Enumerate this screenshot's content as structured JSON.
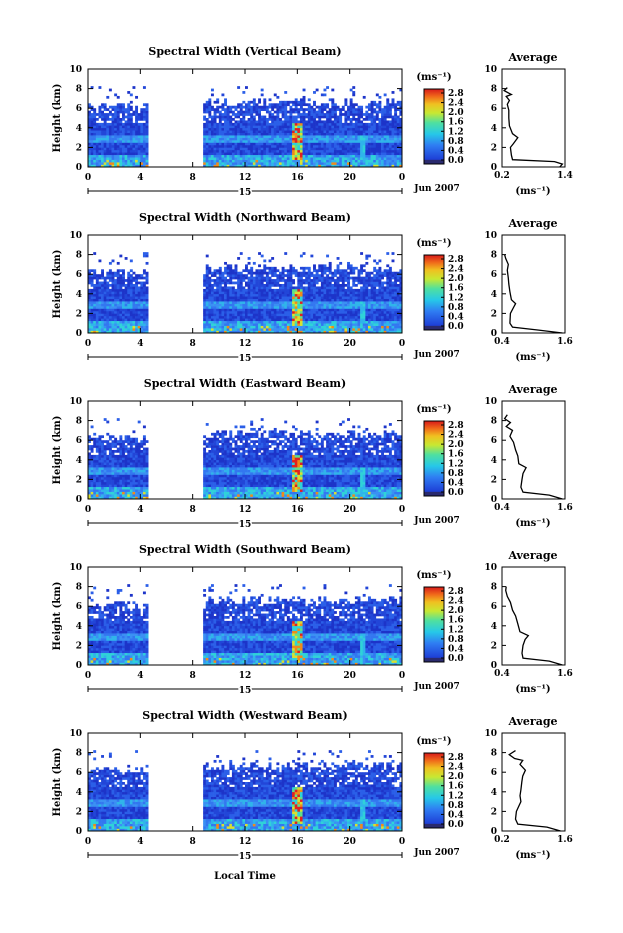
{
  "figure": {
    "date_label": "Jun 2007",
    "day_label": "15",
    "xlabel": "Local Time"
  },
  "chart_data": [
    {
      "type": "heatmap",
      "title": "Spectral Width (Vertical Beam)",
      "ylabel": "Height (km)",
      "xlabel": "Local Time",
      "x_ticks": [
        "0",
        "4",
        "8",
        "12",
        "16",
        "20",
        "0"
      ],
      "y_ticks": [
        "0",
        "2",
        "4",
        "6",
        "8",
        "10"
      ],
      "xlim": [
        0,
        24
      ],
      "ylim": [
        0,
        10
      ],
      "colorbar_label": "(ms⁻¹)",
      "colorbar_ticks": [
        "0.0",
        "0.4",
        "0.8",
        "1.2",
        "1.6",
        "2.0",
        "2.4",
        "2.8"
      ],
      "gaps_hours": [
        [
          4.6,
          8.8
        ]
      ],
      "average_profile": {
        "title": "Average",
        "xlabel": "(ms⁻¹)",
        "xticks": [
          "0.2",
          "1.4"
        ],
        "xlim": [
          0.2,
          1.4
        ],
        "points": [
          [
            1.3,
            0
          ],
          [
            1.35,
            0.3
          ],
          [
            1.2,
            0.55
          ],
          [
            0.4,
            0.75
          ],
          [
            0.38,
            1.2
          ],
          [
            0.36,
            2.0
          ],
          [
            0.42,
            2.4
          ],
          [
            0.5,
            3.0
          ],
          [
            0.4,
            3.4
          ],
          [
            0.34,
            4.2
          ],
          [
            0.33,
            5.0
          ],
          [
            0.33,
            5.8
          ],
          [
            0.3,
            6.4
          ],
          [
            0.34,
            6.8
          ],
          [
            0.28,
            7.2
          ],
          [
            0.38,
            7.4
          ],
          [
            0.24,
            7.8
          ],
          [
            0.3,
            8.1
          ]
        ]
      }
    },
    {
      "type": "heatmap",
      "title": "Spectral Width (Northward Beam)",
      "ylabel": "Height (km)",
      "xlabel": "Local Time",
      "x_ticks": [
        "0",
        "4",
        "8",
        "12",
        "16",
        "20",
        "0"
      ],
      "y_ticks": [
        "0",
        "2",
        "4",
        "6",
        "8",
        "10"
      ],
      "xlim": [
        0,
        24
      ],
      "ylim": [
        0,
        10
      ],
      "colorbar_label": "(ms⁻¹)",
      "colorbar_ticks": [
        "0.0",
        "0.4",
        "0.8",
        "1.2",
        "1.6",
        "2.0",
        "2.4",
        "2.8"
      ],
      "gaps_hours": [
        [
          4.6,
          8.8
        ]
      ],
      "average_profile": {
        "title": "Average",
        "xlabel": "(ms⁻¹)",
        "xticks": [
          "0.4",
          "1.6"
        ],
        "xlim": [
          0.4,
          1.6
        ],
        "points": [
          [
            1.55,
            0
          ],
          [
            1.1,
            0.3
          ],
          [
            0.6,
            0.6
          ],
          [
            0.55,
            1.0
          ],
          [
            0.56,
            2.0
          ],
          [
            0.62,
            2.6
          ],
          [
            0.66,
            3.0
          ],
          [
            0.58,
            3.4
          ],
          [
            0.55,
            4.2
          ],
          [
            0.53,
            5.0
          ],
          [
            0.52,
            5.6
          ],
          [
            0.5,
            6.4
          ],
          [
            0.52,
            7.0
          ],
          [
            0.47,
            7.6
          ],
          [
            0.45,
            8.0
          ]
        ]
      }
    },
    {
      "type": "heatmap",
      "title": "Spectral Width (Eastward Beam)",
      "ylabel": "Height (km)",
      "xlabel": "Local Time",
      "x_ticks": [
        "0",
        "4",
        "8",
        "12",
        "16",
        "20",
        "0"
      ],
      "y_ticks": [
        "0",
        "2",
        "4",
        "6",
        "8",
        "10"
      ],
      "xlim": [
        0,
        24
      ],
      "ylim": [
        0,
        10
      ],
      "colorbar_label": "(ms⁻¹)",
      "colorbar_ticks": [
        "0.0",
        "0.4",
        "0.8",
        "1.2",
        "1.6",
        "2.0",
        "2.4",
        "2.8"
      ],
      "gaps_hours": [
        [
          4.6,
          8.8
        ]
      ],
      "average_profile": {
        "title": "Average",
        "xlabel": "(ms⁻¹)",
        "xticks": [
          "0.4",
          "1.6"
        ],
        "xlim": [
          0.4,
          1.6
        ],
        "points": [
          [
            1.55,
            0
          ],
          [
            1.3,
            0.4
          ],
          [
            0.8,
            0.7
          ],
          [
            0.76,
            1.2
          ],
          [
            0.78,
            2.0
          ],
          [
            0.8,
            2.6
          ],
          [
            0.86,
            3.2
          ],
          [
            0.72,
            3.6
          ],
          [
            0.7,
            4.4
          ],
          [
            0.66,
            5.0
          ],
          [
            0.62,
            5.8
          ],
          [
            0.55,
            6.4
          ],
          [
            0.6,
            7.0
          ],
          [
            0.48,
            7.4
          ],
          [
            0.56,
            7.8
          ],
          [
            0.45,
            8.2
          ],
          [
            0.5,
            8.6
          ]
        ]
      }
    },
    {
      "type": "heatmap",
      "title": "Spectral Width (Southward Beam)",
      "ylabel": "Height (km)",
      "xlabel": "Local Time",
      "x_ticks": [
        "0",
        "4",
        "8",
        "12",
        "16",
        "20",
        "0"
      ],
      "y_ticks": [
        "0",
        "2",
        "4",
        "6",
        "8",
        "10"
      ],
      "xlim": [
        0,
        24
      ],
      "ylim": [
        0,
        10
      ],
      "colorbar_label": "(ms⁻¹)",
      "colorbar_ticks": [
        "0.0",
        "0.4",
        "0.8",
        "1.2",
        "1.6",
        "2.0",
        "2.4",
        "2.8"
      ],
      "gaps_hours": [
        [
          4.6,
          8.8
        ]
      ],
      "average_profile": {
        "title": "Average",
        "xlabel": "(ms⁻¹)",
        "xticks": [
          "0.4",
          "1.6"
        ],
        "xlim": [
          0.4,
          1.6
        ],
        "points": [
          [
            1.55,
            0
          ],
          [
            1.3,
            0.4
          ],
          [
            0.8,
            0.7
          ],
          [
            0.78,
            1.2
          ],
          [
            0.8,
            2.0
          ],
          [
            0.84,
            2.6
          ],
          [
            0.9,
            3.0
          ],
          [
            0.74,
            3.4
          ],
          [
            0.7,
            4.2
          ],
          [
            0.66,
            5.0
          ],
          [
            0.6,
            5.6
          ],
          [
            0.56,
            6.4
          ],
          [
            0.5,
            7.0
          ],
          [
            0.47,
            7.6
          ],
          [
            0.48,
            8.0
          ]
        ]
      }
    },
    {
      "type": "heatmap",
      "title": "Spectral Width (Westward Beam)",
      "ylabel": "Height (km)",
      "xlabel": "Local Time",
      "x_ticks": [
        "0",
        "4",
        "8",
        "12",
        "16",
        "20",
        "0"
      ],
      "y_ticks": [
        "0",
        "2",
        "4",
        "6",
        "8",
        "10"
      ],
      "xlim": [
        0,
        24
      ],
      "ylim": [
        0,
        10
      ],
      "colorbar_label": "(ms⁻¹)",
      "colorbar_ticks": [
        "0.0",
        "0.4",
        "0.8",
        "1.2",
        "1.6",
        "2.0",
        "2.4",
        "2.8"
      ],
      "gaps_hours": [
        [
          4.6,
          8.8
        ]
      ],
      "average_profile": {
        "title": "Average",
        "xlabel": "(ms⁻¹)",
        "xticks": [
          "0.2",
          "1.6"
        ],
        "xlim": [
          0.2,
          1.6
        ],
        "points": [
          [
            1.5,
            0
          ],
          [
            1.2,
            0.4
          ],
          [
            0.55,
            0.7
          ],
          [
            0.5,
            1.2
          ],
          [
            0.52,
            2.0
          ],
          [
            0.58,
            2.6
          ],
          [
            0.62,
            3.0
          ],
          [
            0.6,
            3.6
          ],
          [
            0.62,
            4.2
          ],
          [
            0.64,
            5.0
          ],
          [
            0.66,
            5.6
          ],
          [
            0.72,
            6.2
          ],
          [
            0.6,
            6.8
          ],
          [
            0.66,
            7.2
          ],
          [
            0.48,
            7.4
          ],
          [
            0.36,
            7.8
          ],
          [
            0.5,
            8.2
          ]
        ]
      }
    }
  ]
}
